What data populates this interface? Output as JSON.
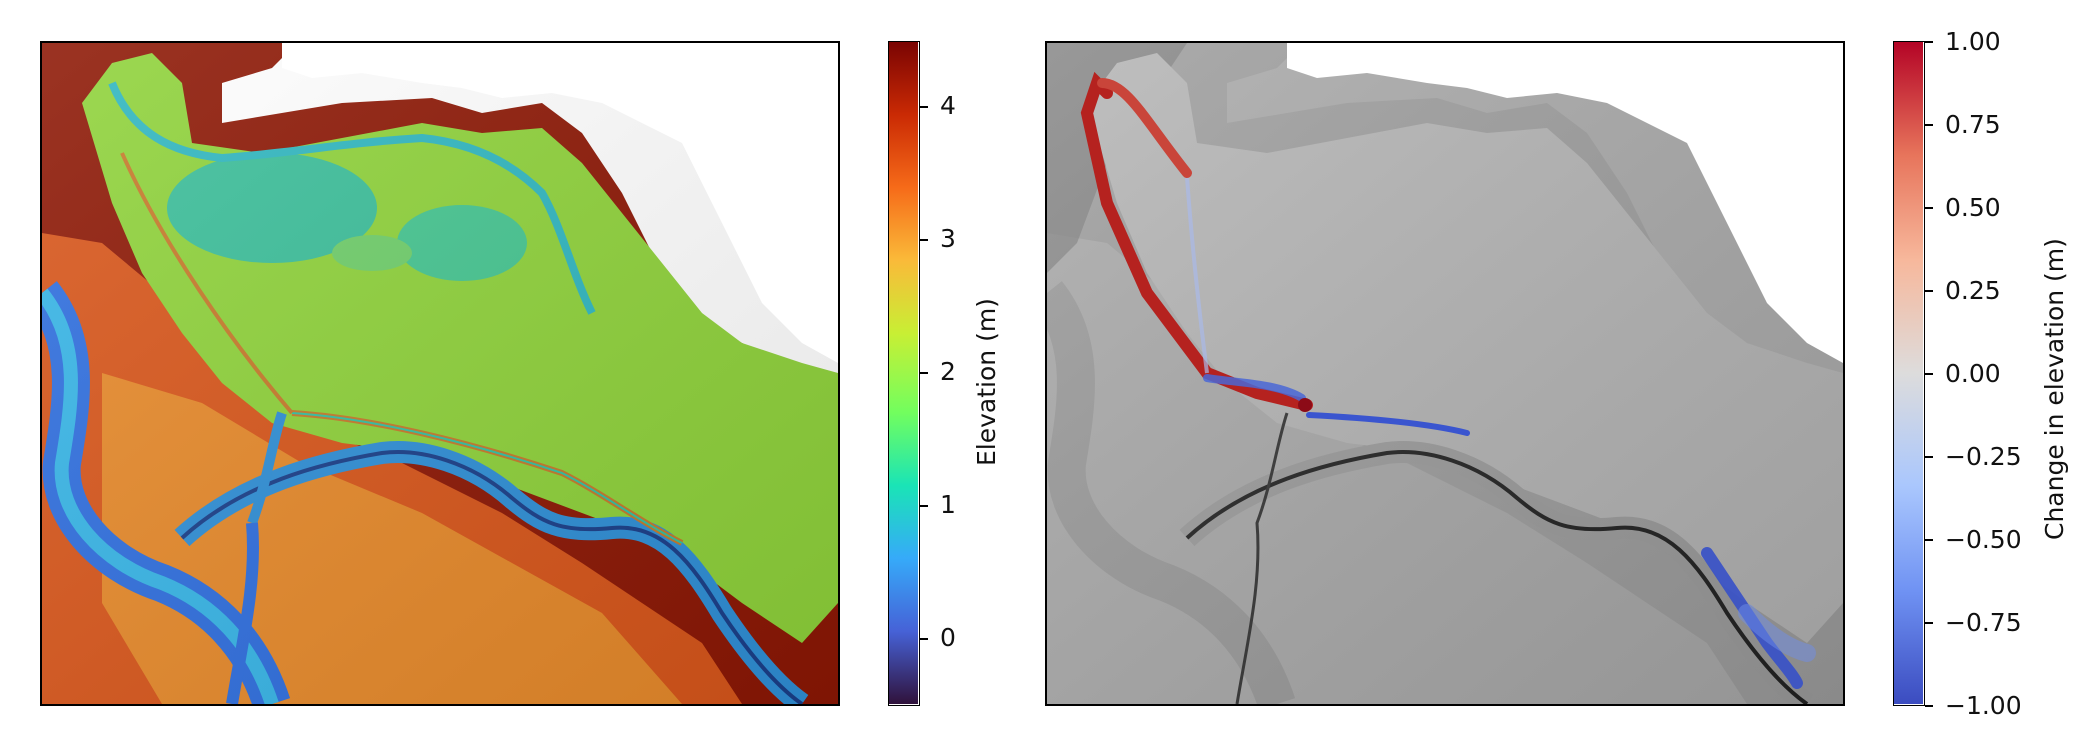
{
  "panels": [
    {
      "colorbar": {
        "label": "Elevation (m)",
        "ticks": [
          "0",
          "1",
          "2",
          "3",
          "4"
        ],
        "cmap": "turbo",
        "range": [
          -0.5,
          4.5
        ],
        "colors": [
          "#30123b",
          "#4662d7",
          "#36aaf9",
          "#1ae4b6",
          "#72fe5e",
          "#c8ef34",
          "#faba39",
          "#f66b19",
          "#ca2a04",
          "#7a0403"
        ]
      }
    },
    {
      "colorbar": {
        "label": "Change in elevation (m)",
        "ticks": [
          "1.00",
          "0.75",
          "0.50",
          "0.25",
          "0.00",
          "−0.25",
          "−0.50",
          "−0.75",
          "−1.00"
        ],
        "cmap": "coolwarm",
        "range": [
          -1.0,
          1.0
        ],
        "colors": [
          "#3b4cc0",
          "#6f92f3",
          "#aac7fd",
          "#dddcdc",
          "#f7b89c",
          "#e7745b",
          "#b40426"
        ]
      }
    }
  ]
}
